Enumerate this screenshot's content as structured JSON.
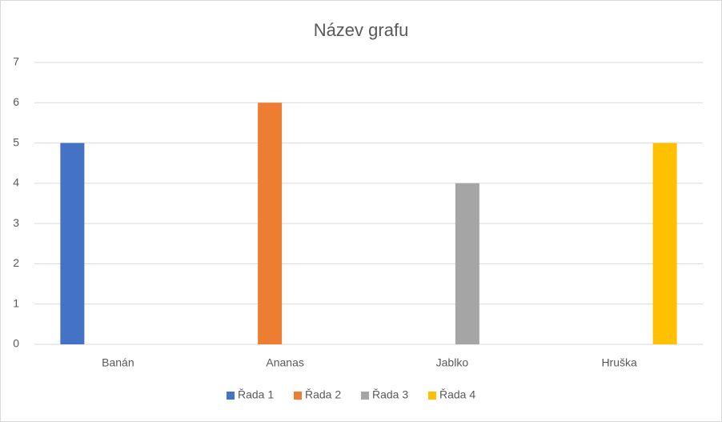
{
  "chart_data": {
    "type": "bar",
    "title": "Název grafu",
    "categories": [
      "Banán",
      "Ananas",
      "Jablko",
      "Hruška"
    ],
    "series": [
      {
        "name": "Řada 1",
        "color": "#4472c4",
        "values": [
          5,
          null,
          null,
          null
        ]
      },
      {
        "name": "Řada 2",
        "color": "#ed7d31",
        "values": [
          null,
          6,
          null,
          null
        ]
      },
      {
        "name": "Řada 3",
        "color": "#a5a5a5",
        "values": [
          null,
          null,
          4,
          null
        ]
      },
      {
        "name": "Řada 4",
        "color": "#ffc000",
        "values": [
          null,
          null,
          null,
          5
        ]
      }
    ],
    "ylim": [
      0,
      7
    ],
    "yticks": [
      0,
      1,
      2,
      3,
      4,
      5,
      6,
      7
    ],
    "grid": true,
    "legend": "bottom"
  }
}
